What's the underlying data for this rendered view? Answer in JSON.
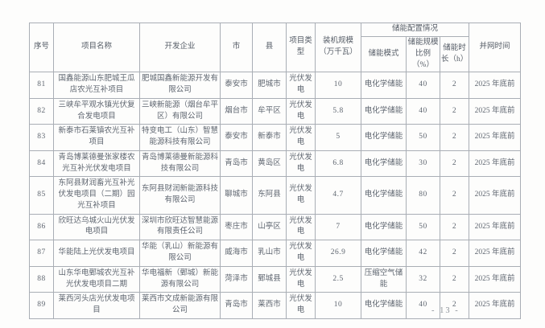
{
  "page": {
    "footer_page_number": "- 13 -"
  },
  "table": {
    "headers": {
      "seq": "序号",
      "name": "项目名称",
      "developer": "开发企业",
      "city": "市",
      "county": "县",
      "type": "项目类型",
      "capacity": "装机规模（万千瓦）",
      "storage_group": "储能配置情况",
      "storage_mode": "储能模式",
      "storage_ratio": "储能规模比例（%）",
      "storage_duration": "储能时长（h）",
      "grid_time": "并网时间"
    },
    "rows": [
      {
        "seq": "81",
        "name": "国鑫能源山东肥城王瓜店农光互补项目",
        "developer": "肥城国鑫新能源开发有限公司",
        "city": "泰安市",
        "county": "肥城市",
        "type": "光伏发电",
        "capacity": "10",
        "storage_mode": "电化学储能",
        "storage_ratio": "40",
        "storage_duration": "2",
        "grid_time": "2025 年底前"
      },
      {
        "seq": "82",
        "name": "三峡牟平观水镇光伏复合发电项目",
        "developer": "三峡新能源（烟台牟平区）有限公司",
        "city": "烟台市",
        "county": "牟平区",
        "type": "光伏发电",
        "capacity": "5.8",
        "storage_mode": "电化学储能",
        "storage_ratio": "40",
        "storage_duration": "2",
        "grid_time": "2025 年底前"
      },
      {
        "seq": "83",
        "name": "新泰市石莱镇农光互补项目",
        "developer": "特变电工（山东）智慧能源科技有限公司",
        "city": "泰安市",
        "county": "新泰市",
        "type": "光伏发电",
        "capacity": "5",
        "storage_mode": "电化学储能",
        "storage_ratio": "50",
        "storage_duration": "2",
        "grid_time": "2025 年底前"
      },
      {
        "seq": "84",
        "name": "青岛博莱德曼张家楼农光互补光伏发电项目",
        "developer": "青岛博莱德曼新能源科技有限公司",
        "city": "青岛市",
        "county": "黄岛区",
        "type": "光伏发电",
        "capacity": "6.8",
        "storage_mode": "电化学储能",
        "storage_ratio": "30",
        "storage_duration": "2",
        "grid_time": "2025 年底前"
      },
      {
        "seq": "85",
        "name": "东阿县财润畜光互补光伏发电项目（二期）园光互补项目",
        "developer": "东阿县财润新能源科技有限公司",
        "city": "聊城市",
        "county": "东阿县",
        "type": "光伏发电",
        "capacity": "4.7",
        "storage_mode": "电化学储能",
        "storage_ratio": "80",
        "storage_duration": "2",
        "grid_time": "2025 年底前"
      },
      {
        "seq": "86",
        "name": "欣旺达乌城火山光伏发电项目",
        "developer": "深圳市欣旺达智慧能源有限责任公司",
        "city": "枣庄市",
        "county": "山亭区",
        "type": "光伏发电",
        "capacity": "7",
        "storage_mode": "电化学储能",
        "storage_ratio": "50",
        "storage_duration": "2",
        "grid_time": "2025 年底前"
      },
      {
        "seq": "87",
        "name": "华能陆上光伏发电项目",
        "developer": "华能（乳山）新能源有限公司",
        "city": "威海市",
        "county": "乳山市",
        "type": "光伏发电",
        "capacity": "26.9",
        "storage_mode": "电化学储能",
        "storage_ratio": "42",
        "storage_duration": "2",
        "grid_time": "2025 年底前"
      },
      {
        "seq": "88",
        "name": "山东华电鄄城农光互补光伏发电项目二期",
        "developer": "华电福新（鄄城）新能源有限公司",
        "city": "菏泽市",
        "county": "鄄城县",
        "type": "光伏发电",
        "capacity": "2.5",
        "storage_mode": "压缩空气储能",
        "storage_ratio": "32",
        "storage_duration": "2",
        "grid_time": "2025 年底前"
      },
      {
        "seq": "89",
        "name": "莱西河头店光伏发电项目",
        "developer": "莱西市文成新能源有限公司",
        "city": "青岛市",
        "county": "莱西市",
        "type": "光伏发电",
        "capacity": "10",
        "storage_mode": "电化学储能",
        "storage_ratio": "40",
        "storage_duration": "2",
        "grid_time": "2025 年底前"
      }
    ]
  }
}
